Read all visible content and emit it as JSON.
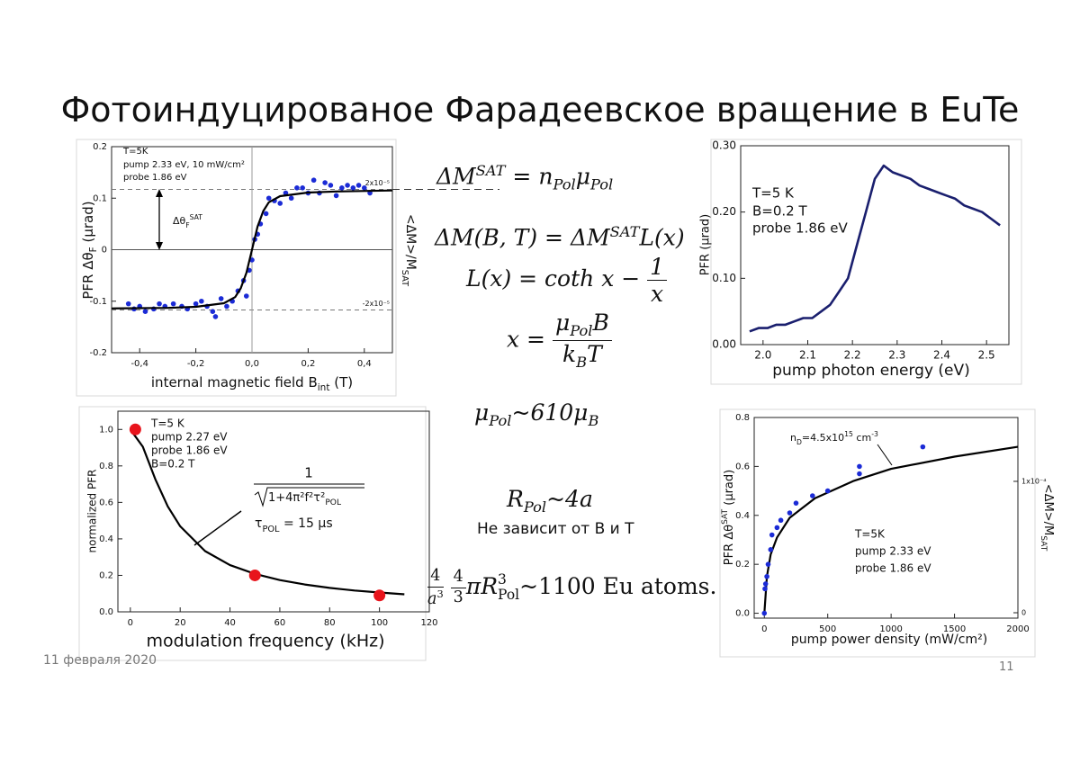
{
  "title": "Фотоиндуцированое Фарадеевское вращение в EuTe",
  "formulas": [
    [
      "ΔM",
      "SAT",
      " = n",
      "Pol",
      "μ",
      "Pol"
    ],
    [
      "ΔM(B, T) = ΔM",
      "SAT",
      "L(x)"
    ],
    [
      "L(x) = coth x − ",
      "1",
      "x"
    ],
    [
      "x = ",
      "μ",
      "Pol",
      "B",
      "k",
      "B",
      "T"
    ],
    [
      "μ",
      "Pol",
      "~610μ",
      "B"
    ],
    [
      "R",
      "Pol",
      "~4a"
    ],
    [
      "4",
      "a",
      "3",
      "4",
      "3",
      "πR",
      "3",
      "Pol",
      "~1100 Eu atoms."
    ]
  ],
  "note": "Не зависит от B и T",
  "date": "11 февраля 2020",
  "page": "11",
  "chart_data": [
    {
      "type": "scatter",
      "xlabel": [
        "internal magnetic field B",
        "int",
        " (T)"
      ],
      "ylabel": [
        "PFR Δθ",
        "F",
        " (μrad)"
      ],
      "y2label": [
        "<ΔM>/M",
        "SAT"
      ],
      "xlim": [
        -0.5,
        0.5
      ],
      "ylim": [
        -0.2,
        0.2
      ],
      "xticks": [
        {
          "value": -0.4,
          "label": "-0,4"
        },
        {
          "value": -0.2,
          "label": "-0,2"
        },
        {
          "value": 0,
          "label": "0,0"
        },
        {
          "value": 0.2,
          "label": "0,2"
        },
        {
          "value": 0.4,
          "label": "0,4"
        }
      ],
      "yticks": [
        -0.2,
        -0.1,
        0,
        0.1,
        0.2
      ],
      "y2lim": [
        -3.42e-05,
        3.42e-05
      ],
      "y2ticks": [
        {
          "value": 2e-05,
          "label": "2x10⁻⁵"
        },
        {
          "value": -2e-05,
          "label": "-2x10⁻⁵"
        }
      ],
      "y2grid": true,
      "zero_lines": true,
      "grid": false,
      "annotations": [
        "T=5K",
        "pump 2.33 eV, 10 mW/cm²",
        "probe 1.86 eV",
        [
          "Δθ",
          "F",
          "SAT"
        ]
      ],
      "series": [
        {
          "type": "scatter",
          "color": "#1b2bd6",
          "x": [
            -0.44,
            -0.42,
            -0.4,
            -0.38,
            -0.35,
            -0.33,
            -0.31,
            -0.28,
            -0.25,
            -0.23,
            -0.2,
            -0.18,
            -0.16,
            -0.14,
            -0.13,
            -0.11,
            -0.09,
            -0.07,
            -0.05,
            -0.03,
            -0.02,
            -0.01,
            0,
            0.01,
            0.02,
            0.03,
            0.05,
            0.06,
            0.08,
            0.1,
            0.12,
            0.14,
            0.16,
            0.18,
            0.2,
            0.22,
            0.24,
            0.26,
            0.28,
            0.3,
            0.32,
            0.34,
            0.36,
            0.38,
            0.4,
            0.42
          ],
          "values": [
            -0.105,
            -0.115,
            -0.11,
            -0.12,
            -0.115,
            -0.105,
            -0.11,
            -0.105,
            -0.11,
            -0.115,
            -0.105,
            -0.1,
            -0.11,
            -0.12,
            -0.13,
            -0.095,
            -0.11,
            -0.1,
            -0.08,
            -0.06,
            -0.09,
            -0.04,
            -0.02,
            0.02,
            0.03,
            0.05,
            0.07,
            0.1,
            0.095,
            0.09,
            0.11,
            0.1,
            0.12,
            0.12,
            0.11,
            0.135,
            0.11,
            0.13,
            0.125,
            0.105,
            0.12,
            0.125,
            0.12,
            0.125,
            0.12,
            0.11
          ]
        },
        {
          "type": "line",
          "color": "#000000",
          "x": [
            -0.5,
            -0.3,
            -0.2,
            -0.1,
            -0.06,
            -0.04,
            -0.02,
            0,
            0.02,
            0.04,
            0.06,
            0.1,
            0.2,
            0.3,
            0.5
          ],
          "values": [
            -0.114,
            -0.113,
            -0.111,
            -0.104,
            -0.092,
            -0.075,
            -0.045,
            0,
            0.045,
            0.075,
            0.092,
            0.104,
            0.111,
            0.113,
            0.115
          ]
        }
      ]
    },
    {
      "type": "line",
      "xlabel": "pump photon energy (eV)",
      "ylabel": "PFR (μrad)",
      "xlim": [
        1.95,
        2.55
      ],
      "ylim": [
        0,
        0.3
      ],
      "xticks": [
        {
          "value": 2.0,
          "label": "2.0"
        },
        2.1,
        2.2,
        2.3,
        2.4,
        2.5
      ],
      "yticks": [
        {
          "value": 0,
          "label": "0.00"
        },
        {
          "value": 0.1,
          "label": "0.10"
        },
        {
          "value": 0.2,
          "label": "0.20"
        },
        {
          "value": 0.3,
          "label": "0.30"
        }
      ],
      "grid": false,
      "annotations": [
        "T=5 K",
        "B=0.2 T",
        "probe 1.86 eV"
      ],
      "series": [
        {
          "type": "line",
          "color": "#1a1f6e",
          "x": [
            1.97,
            1.99,
            2.01,
            2.03,
            2.05,
            2.07,
            2.09,
            2.11,
            2.13,
            2.15,
            2.17,
            2.19,
            2.21,
            2.23,
            2.25,
            2.27,
            2.29,
            2.31,
            2.33,
            2.35,
            2.37,
            2.39,
            2.41,
            2.43,
            2.45,
            2.47,
            2.49,
            2.51,
            2.53
          ],
          "values": [
            0.02,
            0.025,
            0.025,
            0.03,
            0.03,
            0.035,
            0.04,
            0.04,
            0.05,
            0.06,
            0.08,
            0.1,
            0.15,
            0.2,
            0.25,
            0.27,
            0.26,
            0.255,
            0.25,
            0.24,
            0.235,
            0.23,
            0.225,
            0.22,
            0.21,
            0.205,
            0.2,
            0.19,
            0.18
          ]
        }
      ]
    },
    {
      "type": "scatter",
      "xlabel": "modulation frequency (kHz)",
      "ylabel": "normalized PFR",
      "xlim": [
        -5,
        120
      ],
      "ylim": [
        0,
        1.1
      ],
      "xticks": [
        0,
        20,
        40,
        60,
        80,
        100,
        120
      ],
      "yticks": [
        {
          "value": 0,
          "label": "0.0"
        },
        {
          "value": 0.2,
          "label": "0.2"
        },
        {
          "value": 0.4,
          "label": "0.4"
        },
        {
          "value": 0.6,
          "label": "0.6"
        },
        {
          "value": 0.8,
          "label": "0.8"
        },
        {
          "value": 1,
          "label": "1.0"
        }
      ],
      "grid": false,
      "annotations": [
        "T=5 K",
        "pump 2.27 eV",
        "probe 1.86 eV",
        "B=0.2 T",
        "1",
        [
          "1+4π²f²τ²",
          "POL"
        ],
        [
          "τ",
          "POL",
          " = 15 μs"
        ]
      ],
      "series": [
        {
          "type": "line",
          "color": "#000000",
          "x": [
            0,
            5,
            10,
            15,
            20,
            30,
            40,
            50,
            60,
            70,
            80,
            90,
            100,
            110
          ],
          "values": [
            1,
            0.905,
            0.728,
            0.578,
            0.469,
            0.333,
            0.256,
            0.208,
            0.174,
            0.15,
            0.131,
            0.117,
            0.106,
            0.096
          ]
        },
        {
          "type": "scatter",
          "color": "#e8141c",
          "x": [
            2,
            50,
            100
          ],
          "values": [
            1.0,
            0.2,
            0.09
          ]
        }
      ]
    },
    {
      "type": "scatter",
      "xlabel": "pump power density (mW/cm²)",
      "ylabel": [
        "PFR Δθ",
        "SAT",
        " (μrad)"
      ],
      "y2label": [
        "<ΔM>/M",
        "SAT"
      ],
      "xlim": [
        -80,
        2000
      ],
      "ylim": [
        -0.02,
        0.8
      ],
      "xticks": [
        0,
        500,
        1000,
        1500,
        2000
      ],
      "yticks": [
        {
          "value": 0,
          "label": "0.0"
        },
        {
          "value": 0.2,
          "label": "0.2"
        },
        {
          "value": 0.4,
          "label": "0.4"
        },
        {
          "value": 0.6,
          "label": "0.6"
        },
        {
          "value": 0.8,
          "label": "0.8"
        }
      ],
      "y2lim": [
        -4.1e-06,
        0.0001486
      ],
      "y2ticks": [
        0,
        {
          "value": 0.0001,
          "label": "1x10⁻⁴"
        }
      ],
      "y2grid": false,
      "grid": false,
      "annotations": [
        [
          "n",
          "D",
          "=4.5x10",
          "15",
          " cm",
          "-3"
        ],
        "T=5K",
        "pump 2.33 eV",
        "probe 1.86 eV"
      ],
      "series": [
        {
          "type": "line",
          "color": "#000000",
          "x": [
            0,
            20,
            50,
            100,
            200,
            400,
            700,
            1000,
            1500,
            2000
          ],
          "values": [
            0,
            0.15,
            0.24,
            0.31,
            0.39,
            0.47,
            0.54,
            0.59,
            0.64,
            0.68
          ]
        },
        {
          "type": "scatter",
          "color": "#1b2bd6",
          "x": [
            0,
            5,
            10,
            20,
            30,
            50,
            60,
            100,
            130,
            200,
            250,
            380,
            500,
            750,
            750,
            1250
          ],
          "values": [
            0,
            0.1,
            0.12,
            0.15,
            0.2,
            0.26,
            0.32,
            0.35,
            0.38,
            0.41,
            0.45,
            0.48,
            0.5,
            0.57,
            0.6,
            0.68
          ]
        }
      ]
    }
  ]
}
